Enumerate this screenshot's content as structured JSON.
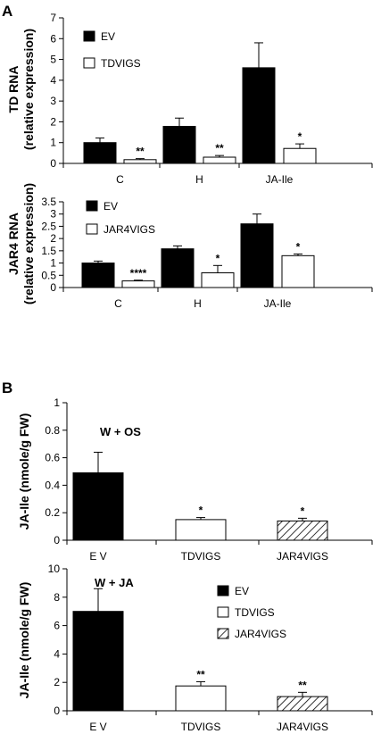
{
  "panel_labels": [
    "A",
    "B"
  ],
  "colors": {
    "ev": "#000000",
    "vigs": "#ffffff",
    "outline": "#000000",
    "hatch": "#000000"
  },
  "chart_data": [
    {
      "id": "td",
      "type": "bar",
      "ylabel_lines": [
        "TD RNA",
        "(relative expression)"
      ],
      "ylim": [
        0,
        7
      ],
      "yticks": [
        "0",
        "1",
        "2",
        "3",
        "4",
        "5",
        "6",
        "7"
      ],
      "categories": [
        "C",
        "H",
        "JA-Ile"
      ],
      "legend": [
        "EV",
        "TDVIGS"
      ],
      "series": [
        {
          "name": "EV",
          "fill": "black",
          "values": [
            1.0,
            1.78,
            4.6
          ],
          "err": [
            0.22,
            0.4,
            1.2
          ],
          "stars": [
            "",
            "",
            ""
          ]
        },
        {
          "name": "TDVIGS",
          "fill": "white",
          "values": [
            0.18,
            0.3,
            0.72
          ],
          "err": [
            0.05,
            0.08,
            0.22
          ],
          "stars": [
            "**",
            "**",
            "*"
          ]
        }
      ]
    },
    {
      "id": "jar4",
      "type": "bar",
      "ylabel_lines": [
        "JAR4 RNA",
        "(relative expression)"
      ],
      "ylim": [
        0,
        3.5
      ],
      "yticks": [
        "0",
        "0.5",
        "1",
        "1.5",
        "2",
        "2.5",
        "3",
        "3.5"
      ],
      "categories": [
        "C",
        "H",
        "JA-Ile"
      ],
      "legend": [
        "EV",
        "JAR4VIGS"
      ],
      "series": [
        {
          "name": "EV",
          "fill": "black",
          "values": [
            1.0,
            1.58,
            2.6
          ],
          "err": [
            0.08,
            0.12,
            0.4
          ],
          "stars": [
            "",
            "",
            ""
          ]
        },
        {
          "name": "JAR4VIGS",
          "fill": "white",
          "values": [
            0.27,
            0.6,
            1.3
          ],
          "err": [
            0.03,
            0.3,
            0.07
          ],
          "stars": [
            "****",
            "*",
            "*"
          ]
        }
      ]
    },
    {
      "id": "wos",
      "type": "bar",
      "condition": "W + OS",
      "ylabel_lines": [
        "JA-Ile (nmole/g FW)"
      ],
      "ylim": [
        0,
        1
      ],
      "yticks": [
        "0",
        "0.2",
        "0.4",
        "0.6",
        "0.8",
        "1"
      ],
      "categories": [
        "E V",
        "TDVIGS",
        "JAR4VIGS"
      ],
      "bars": [
        {
          "fill": "black",
          "value": 0.49,
          "err": 0.15,
          "star": ""
        },
        {
          "fill": "white",
          "value": 0.15,
          "err": 0.015,
          "star": "*"
        },
        {
          "fill": "hatch",
          "value": 0.14,
          "err": 0.02,
          "star": "*"
        }
      ]
    },
    {
      "id": "wja",
      "type": "bar",
      "condition": "W + JA",
      "ylabel_lines": [
        "JA-Ile (nmole/g FW)"
      ],
      "ylim": [
        0,
        10
      ],
      "yticks": [
        "0",
        "2",
        "4",
        "6",
        "8",
        "10"
      ],
      "categories": [
        "E V",
        "TDVIGS",
        "JAR4VIGS"
      ],
      "legend": [
        "EV",
        "TDVIGS",
        "JAR4VIGS"
      ],
      "bars": [
        {
          "fill": "black",
          "value": 7.0,
          "err": 1.6,
          "star": ""
        },
        {
          "fill": "white",
          "value": 1.75,
          "err": 0.3,
          "star": "**"
        },
        {
          "fill": "hatch",
          "value": 1.0,
          "err": 0.3,
          "star": "**"
        }
      ]
    }
  ]
}
